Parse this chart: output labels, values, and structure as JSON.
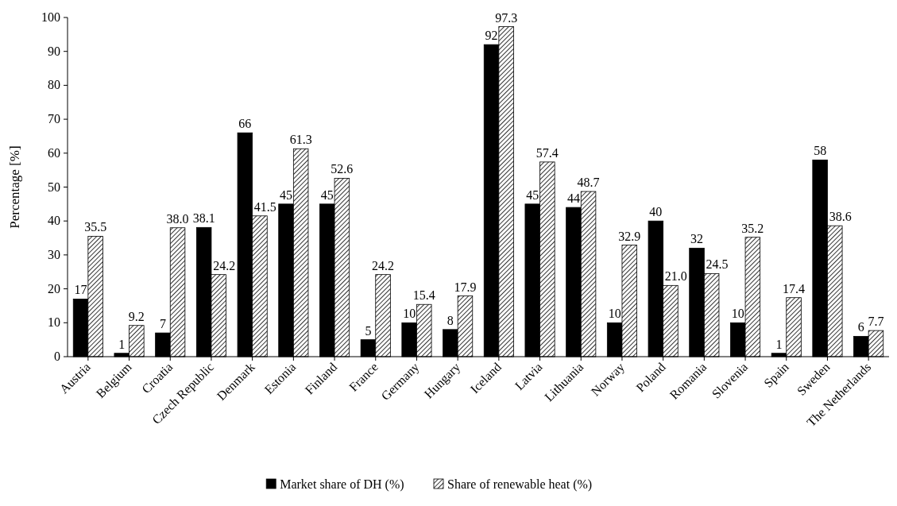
{
  "chart_data": {
    "type": "bar",
    "ylabel": "Percentage [%]",
    "categories": [
      "Austria",
      "Belgium",
      "Croatia",
      "Czech Republic",
      "Denmark",
      "Estonia",
      "Finland",
      "France",
      "Germany",
      "Hungary",
      "Iceland",
      "Latvia",
      "Lithuania",
      "Norway",
      "Poland",
      "Romania",
      "Slovenia",
      "Spain",
      "Sweden",
      "The Netherlands"
    ],
    "series": [
      {
        "name": "Market share of DH (%)",
        "color": "#000000",
        "values": [
          17,
          1,
          7,
          38.1,
          66,
          45,
          45,
          5,
          10,
          8,
          92,
          45,
          44,
          10,
          40,
          32,
          10,
          1,
          58,
          6
        ],
        "value_labels": [
          "17",
          "1",
          "7",
          "38.1",
          "66",
          "45",
          "45",
          "5",
          "10",
          "8",
          "92",
          "45",
          "44",
          "10",
          "40",
          "32",
          "10",
          "1",
          "58",
          "6"
        ]
      },
      {
        "name": "Share of renewable heat (%)",
        "color": "#000000",
        "values": [
          35.5,
          9.2,
          38.0,
          24.2,
          41.5,
          61.3,
          52.6,
          24.2,
          15.4,
          17.9,
          97.3,
          57.4,
          48.7,
          32.9,
          21.0,
          24.5,
          35.2,
          17.4,
          38.6,
          7.7
        ],
        "value_labels": [
          "35.5",
          "9.2",
          "38.0",
          "24.2",
          "41.5",
          "61.3",
          "52.6",
          "24.2",
          "15.4",
          "17.9",
          "97.3",
          "57.4",
          "48.7",
          "32.9",
          "21.0",
          "24.5",
          "35.2",
          "17.4",
          "38.6",
          "7.7"
        ]
      }
    ],
    "ylim": [
      0,
      100
    ],
    "yticks": [
      0,
      10,
      20,
      30,
      40,
      50,
      60,
      70,
      80,
      90,
      100
    ],
    "grid": false,
    "legend": "bottom"
  }
}
